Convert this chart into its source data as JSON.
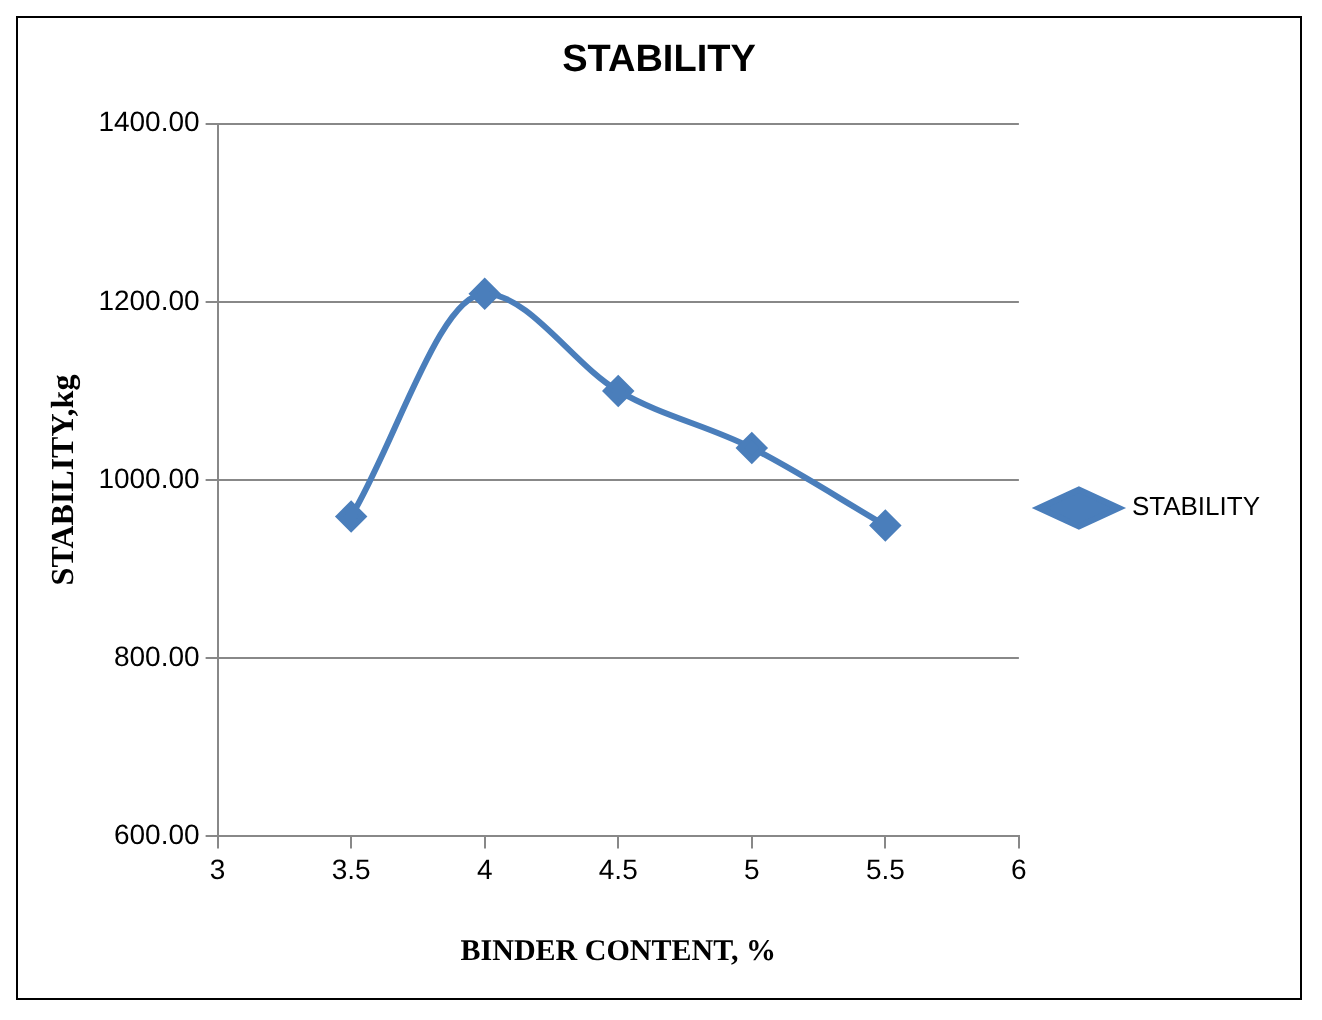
{
  "chart_data": {
    "type": "line",
    "title": "STABILITY",
    "xlabel": "BINDER CONTENT, %",
    "ylabel": "STABILITY,kg",
    "x": [
      3.5,
      4,
      4.5,
      5,
      5.5
    ],
    "series": [
      {
        "name": "STABILITY",
        "color": "#4a7ebb",
        "values": [
          959,
          1209,
          1100,
          1036,
          949
        ]
      }
    ],
    "xlim": [
      3,
      6
    ],
    "xticks": [
      3,
      3.5,
      4,
      4.5,
      5,
      5.5,
      6
    ],
    "ylim": [
      600,
      1400
    ],
    "yticks": [
      {
        "value": 600,
        "label": "600.00"
      },
      {
        "value": 800,
        "label": "800.00"
      },
      {
        "value": 1000,
        "label": "1000.00"
      },
      {
        "value": 1200,
        "label": "1200.00"
      },
      {
        "value": 1400,
        "label": "1400.00"
      }
    ],
    "grid": "y",
    "legend": "right",
    "marker": "diamond",
    "line_style": "solid"
  }
}
